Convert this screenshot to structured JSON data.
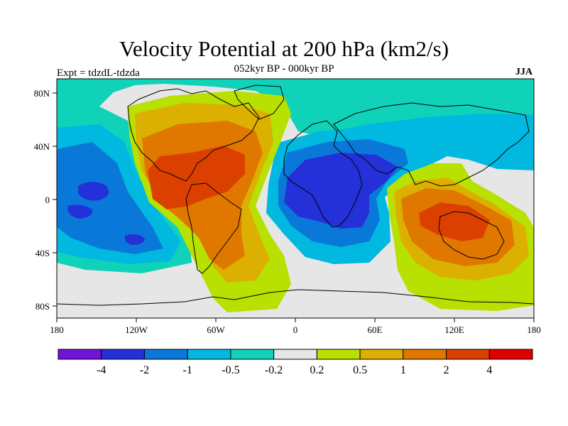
{
  "title": "Velocity Potential at 200 hPa (km2/s)",
  "subtitle": "052kyr BP - 000kyr BP",
  "left_label": "Expt = tdzdL-tdzda",
  "right_label": "JJA",
  "axes": {
    "x_ticks": [
      "180",
      "120W",
      "60W",
      "0",
      "60E",
      "120E",
      "180"
    ],
    "y_ticks": [
      "80N",
      "40N",
      "0",
      "40S",
      "80S"
    ]
  },
  "colorbar": {
    "colors": [
      "#7012d8",
      "#2430d8",
      "#0a78d8",
      "#00b8e0",
      "#10d2b8",
      "#e6e6e6",
      "#b8e000",
      "#dcb000",
      "#e07800",
      "#dc4000",
      "#e00000"
    ],
    "labels": [
      "-4",
      "-2",
      "-1",
      "-0.5",
      "-0.2",
      "0.2",
      "0.5",
      "1",
      "2",
      "4"
    ]
  },
  "chart_data": {
    "type": "heatmap",
    "title": "Velocity Potential at 200 hPa (km2/s)",
    "subtitle": "052kyr BP - 000kyr BP",
    "xlabel": "",
    "ylabel": "",
    "xlim": [
      -180,
      180
    ],
    "ylim": [
      -90,
      90
    ],
    "contour_levels": [
      -4,
      -2,
      -1,
      -0.5,
      -0.2,
      0.2,
      0.5,
      1,
      2,
      4
    ],
    "fields": [
      {
        "region": "Western Atlantic / Central America",
        "level": "2 to 4",
        "color": "#dc4000"
      },
      {
        "region": "Americas to Atlantic",
        "level": "0.2 to 2",
        "color": "#e07800"
      },
      {
        "region": "Africa / Indian Ocean",
        "level": "-4 to -2",
        "color": "#2430d8"
      },
      {
        "region": "Central Pacific",
        "level": "-2 to -0.2",
        "color": "#0a78d8"
      },
      {
        "region": "Maritime Continent / Australia",
        "level": "1 to 4",
        "color": "#dc4000"
      },
      {
        "region": "Arctic / Northern Eurasia",
        "level": "-0.5 to -0.2",
        "color": "#10d2b8"
      }
    ]
  }
}
